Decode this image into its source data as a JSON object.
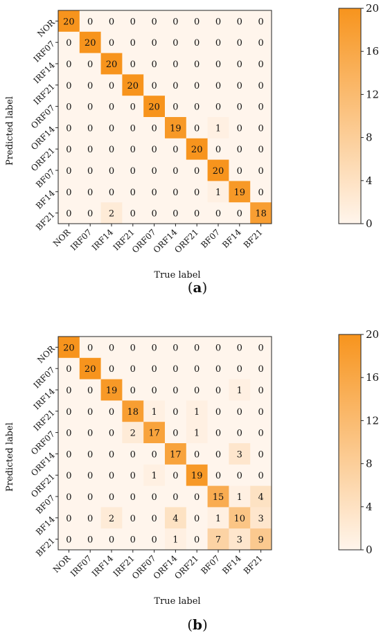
{
  "colors": {
    "low": "#fff5ec",
    "high": "#f7941d"
  },
  "chart_data": [
    {
      "type": "heatmap",
      "panel_label": "a",
      "xlabel": "True label",
      "ylabel": "Predicted label",
      "x_categories": [
        "NOR",
        "IRF07",
        "IRF14",
        "IRF21",
        "ORF07",
        "ORF14",
        "ORF21",
        "BF07",
        "BF14",
        "BF21"
      ],
      "y_categories": [
        "NOR",
        "IRF07",
        "IRF14",
        "IRF21",
        "ORF07",
        "ORF14",
        "ORF21",
        "BF07",
        "BF14",
        "BF21"
      ],
      "values": [
        [
          20,
          0,
          0,
          0,
          0,
          0,
          0,
          0,
          0,
          0
        ],
        [
          0,
          20,
          0,
          0,
          0,
          0,
          0,
          0,
          0,
          0
        ],
        [
          0,
          0,
          20,
          0,
          0,
          0,
          0,
          0,
          0,
          0
        ],
        [
          0,
          0,
          0,
          20,
          0,
          0,
          0,
          0,
          0,
          0
        ],
        [
          0,
          0,
          0,
          0,
          20,
          0,
          0,
          0,
          0,
          0
        ],
        [
          0,
          0,
          0,
          0,
          0,
          19,
          0,
          1,
          0,
          0
        ],
        [
          0,
          0,
          0,
          0,
          0,
          0,
          20,
          0,
          0,
          0
        ],
        [
          0,
          0,
          0,
          0,
          0,
          0,
          0,
          20,
          0,
          0
        ],
        [
          0,
          0,
          0,
          0,
          0,
          0,
          0,
          1,
          19,
          0
        ],
        [
          0,
          0,
          2,
          0,
          0,
          0,
          0,
          0,
          0,
          18
        ]
      ],
      "colorbar": {
        "range": [
          0,
          20
        ],
        "ticks": [
          0,
          4,
          8,
          12,
          16,
          20
        ]
      }
    },
    {
      "type": "heatmap",
      "panel_label": "b",
      "xlabel": "True label",
      "ylabel": "Predicted label",
      "x_categories": [
        "NOR",
        "IRF07",
        "IRF14",
        "IRF21",
        "ORF07",
        "ORF14",
        "ORF21",
        "BF07",
        "BF14",
        "BF21"
      ],
      "y_categories": [
        "NOR",
        "IRF07",
        "IRF14",
        "IRF21",
        "ORF07",
        "ORF14",
        "ORF21",
        "BF07",
        "BF14",
        "BF21"
      ],
      "values": [
        [
          20,
          0,
          0,
          0,
          0,
          0,
          0,
          0,
          0,
          0
        ],
        [
          0,
          20,
          0,
          0,
          0,
          0,
          0,
          0,
          0,
          0
        ],
        [
          0,
          0,
          19,
          0,
          0,
          0,
          0,
          0,
          1,
          0
        ],
        [
          0,
          0,
          0,
          18,
          1,
          0,
          1,
          0,
          0,
          0
        ],
        [
          0,
          0,
          0,
          2,
          17,
          0,
          1,
          0,
          0,
          0
        ],
        [
          0,
          0,
          0,
          0,
          0,
          17,
          0,
          0,
          3,
          0
        ],
        [
          0,
          0,
          0,
          0,
          1,
          0,
          19,
          0,
          0,
          0
        ],
        [
          0,
          0,
          0,
          0,
          0,
          0,
          0,
          15,
          1,
          4
        ],
        [
          0,
          0,
          2,
          0,
          0,
          4,
          0,
          1,
          10,
          3
        ],
        [
          0,
          0,
          0,
          0,
          0,
          1,
          0,
          7,
          3,
          9
        ]
      ],
      "colorbar": {
        "range": [
          0,
          20
        ],
        "ticks": [
          0,
          4,
          8,
          12,
          16,
          20
        ]
      }
    }
  ]
}
